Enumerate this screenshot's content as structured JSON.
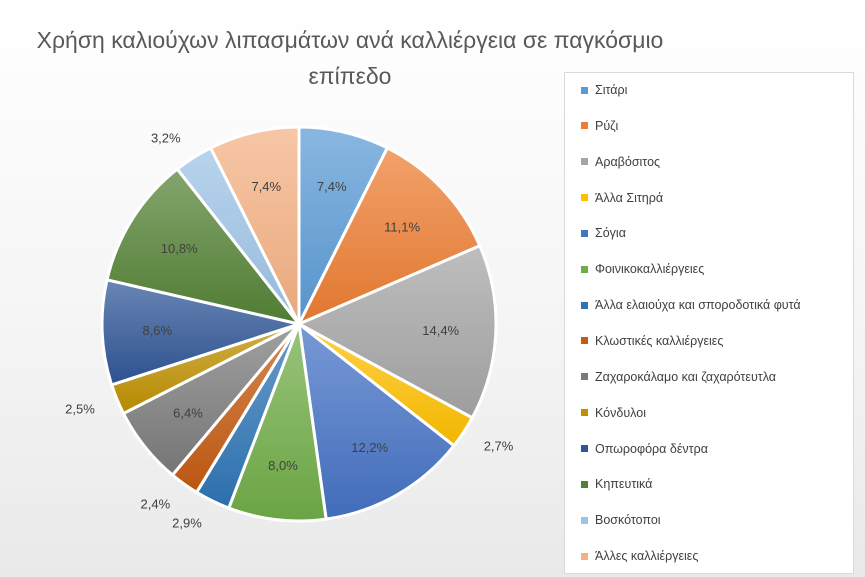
{
  "chart_data": {
    "type": "pie",
    "title": "Χρήση καλιούχων λιπασμάτων ανά καλλιέργεια σε παγκόσμιο επίπεδο",
    "legend_position": "right",
    "categories": [
      "Σιτάρι",
      "Ρύζι",
      "Αραβόσιτος",
      "Άλλα Σιτηρά",
      "Σόγια",
      "Φοινικοκαλλιέργειες",
      "Άλλα ελαιούχα και σποροδοτικά φυτά",
      "Κλωστικές καλλιέργειες",
      "Ζαχαροκάλαμο και ζαχαρότευτλα",
      "Κόνδυλοι",
      "Οπωροφόρα δέντρα",
      "Κηπευτικά",
      "Βοσκότοποι",
      "Άλλες καλλιέργειες"
    ],
    "values": [
      7.4,
      11.1,
      14.4,
      2.7,
      12.2,
      8.0,
      2.9,
      2.4,
      6.4,
      2.5,
      8.6,
      10.8,
      3.2,
      7.4
    ],
    "data_labels": [
      "7,4%",
      "11,1%",
      "14,4%",
      "2,7%",
      "12,2%",
      "8,0%",
      "2,9%",
      "2,4%",
      "6,4%",
      "2,5%",
      "8,6%",
      "10,8%",
      "3,2%",
      "7,4%"
    ],
    "colors": [
      "#5b9bd5",
      "#ed7d31",
      "#a5a5a5",
      "#ffc000",
      "#4472c4",
      "#70ad47",
      "#2e75b6",
      "#c55a11",
      "#7b7b7b",
      "#bf9000",
      "#2f5597",
      "#548235",
      "#9dc3e6",
      "#f4b183"
    ]
  }
}
